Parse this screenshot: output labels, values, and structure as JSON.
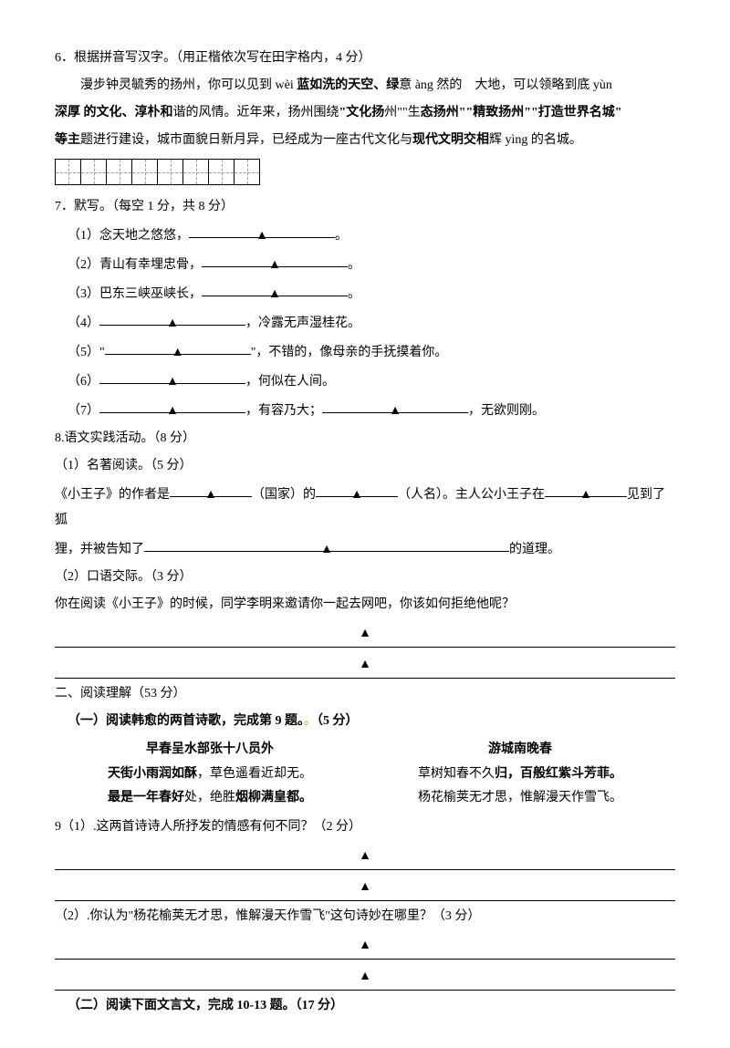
{
  "q6": {
    "prompt": "6．根据拼音写汉字。（用正楷依次写在田字格内，4 分）",
    "passage_p1a": "漫步钟灵毓秀的扬州，你可以见到 wèi ",
    "passage_p1b": "蓝如洗的天空、绿",
    "passage_p1c": "意 àng 然的　大地，可以领",
    "passage_p1d": "略到底 yùn",
    "passage_p2a": "深厚 的文化、淳朴和",
    "passage_p2b": "谐的风情。近年来，扬州围绕",
    "passage_p2c": "\"文化扬",
    "passage_p2d": "州\"\"生",
    "passage_p2e": "态扬州\"\"精致扬州\"\"打造世界名城\"",
    "passage_p3a": "等主",
    "passage_p3b": "题进行建设，城市面貌日新月异，已经成为一座古代文化与",
    "passage_p3c": "现代文明交相",
    "passage_p3d": "辉 yìng 的名城。"
  },
  "q7": {
    "title": "7．默写。（每空 1 分，共 8 分）",
    "items": [
      {
        "label": "（1）念天地之悠悠，",
        "tail": "。"
      },
      {
        "label": "（2）青山有幸埋忠骨，",
        "tail": "。"
      },
      {
        "label": "（3）巴东三峡巫峡长，",
        "tail": "。"
      },
      {
        "label": "（4）",
        "tail": "，冷露无声湿桂花。"
      },
      {
        "label": "（5）\"",
        "tail": "\"，不错的，像母亲的手抚摸着你。"
      },
      {
        "label": "（6）",
        "tail": "，何似在人间。"
      },
      {
        "label_a": "（7）",
        "mid": "，有容乃大；",
        "tail": "，无欲则刚。"
      }
    ]
  },
  "q8": {
    "title": "8.语文实践活动。（8 分）",
    "part1_title": "（1）名著阅读。（5 分）",
    "p1a": "《小王子》的作者是",
    "p1b": "（国家）的",
    "p1c": "（人名）。主人公小王子在",
    "p1d": "见到了狐",
    "p1e": "狸，并被告知了",
    "p1f": "的道理。",
    "part2_title": "（2）口语交际。（3 分）",
    "p2_q": "你在阅读《小王子》的时候，同学李明来邀请你一起去网吧，你该如何拒绝他呢？"
  },
  "sec2": {
    "title": "二、阅读理解（53 分）",
    "sub1": "（一）阅读韩愈的两首诗歌，完成第 9 题。",
    "sub1_tail": "（5 分）",
    "poem1_title": "早春呈水部张十八员外",
    "poem2_title": "游城南晚春",
    "poem1_l1a": "天街小雨润如酥",
    "poem1_l1b": "，草色遥看近却无。",
    "poem1_l2a": "最是一年春好",
    "poem1_l2b": "处，绝胜",
    "poem1_l2c": "烟柳满皇都。",
    "poem2_l1a": "草树知春不久",
    "poem2_l1b": "归，百般红紫斗芳菲。",
    "poem2_l2a": "杨花榆荚无才思，惟解漫天作雪飞。",
    "q9_1": "9（1）.这两首诗诗人所抒发的情感有何不同？（2 分）",
    "q9_2": "（2）.你认为\"杨花榆荚无才思，惟解漫天作雪飞\"这句诗妙在哪里？（3 分）",
    "sub2": "（二）阅读下面文言文，完成 10-13 题。（17 分）"
  },
  "tri": "▲"
}
